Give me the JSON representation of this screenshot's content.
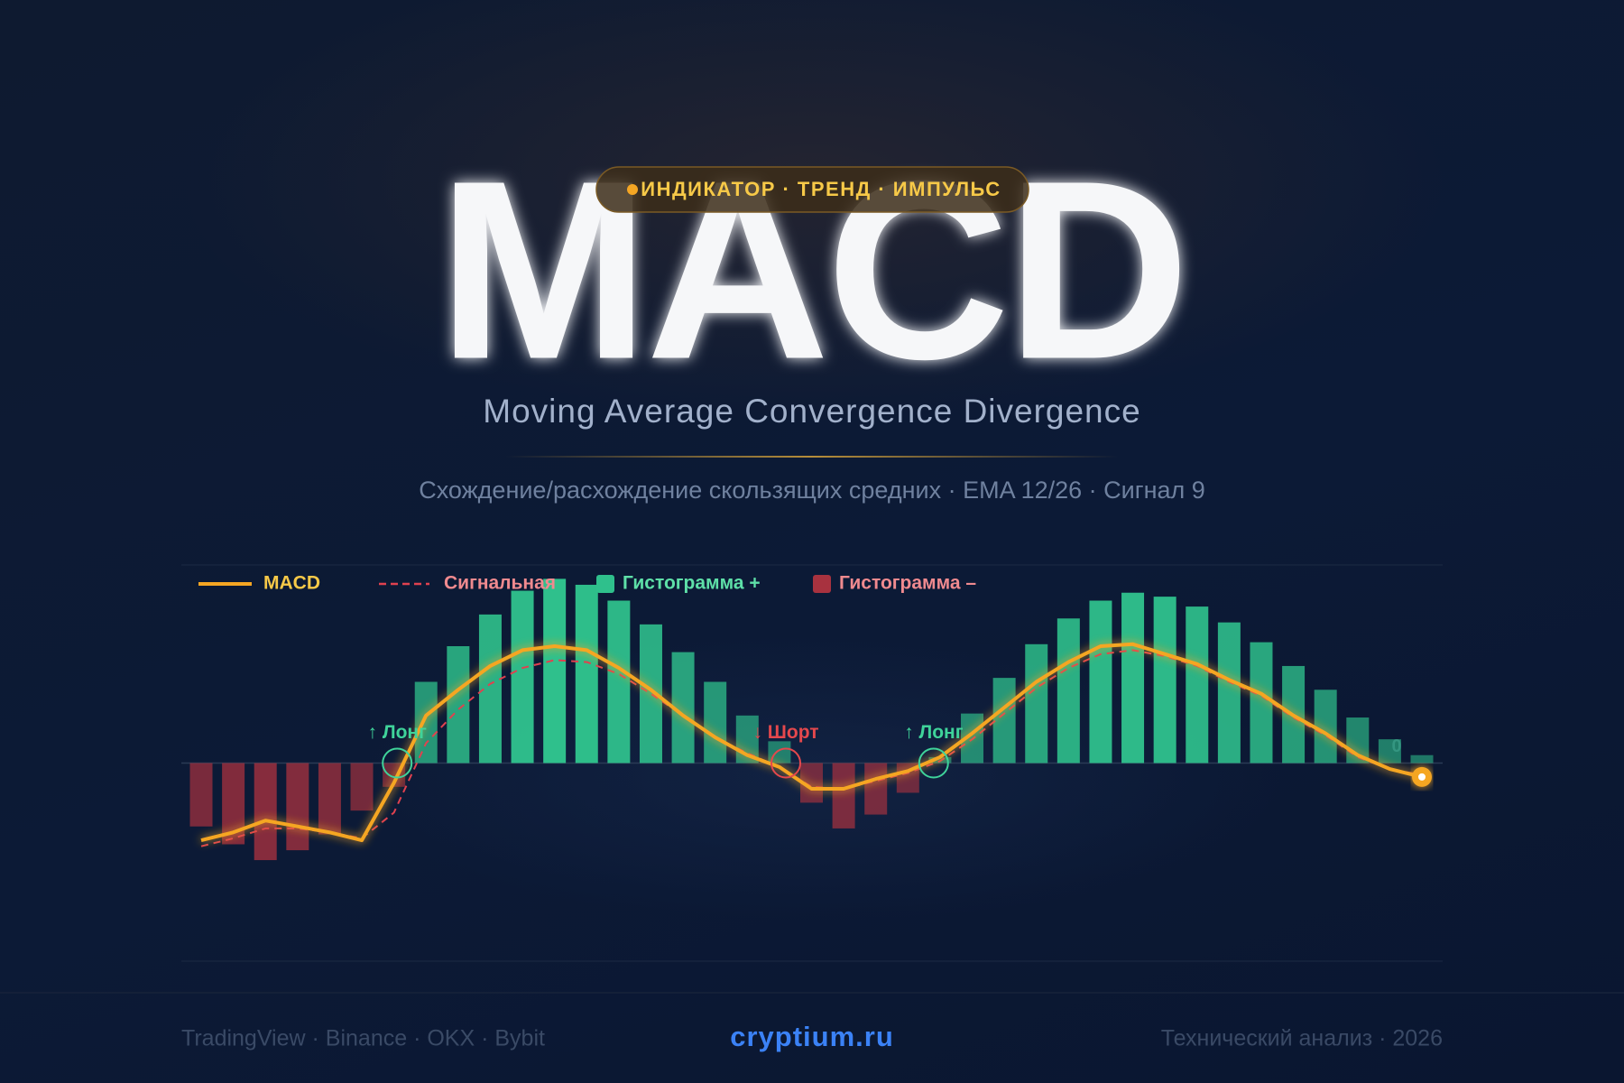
{
  "header": {
    "badge": "ИНДИКАТОР · ТРЕНД · ИМПУЛЬС",
    "title": "MACD",
    "subtitle": "Moving Average Convergence Divergence",
    "description": "Схождение/расхождение скользящих средних · EMA 12/26 · Сигнал 9"
  },
  "chart_data": {
    "type": "macd",
    "categories": [
      null,
      null,
      null,
      null,
      null,
      null,
      null,
      null,
      null,
      null,
      null,
      null,
      null,
      null,
      null,
      null,
      null,
      null,
      null,
      null,
      null,
      null,
      null,
      null,
      null,
      null,
      null,
      null,
      null,
      null,
      null,
      null,
      null,
      null,
      null,
      null,
      null,
      null,
      null
    ],
    "histogram": {
      "values": [
        -3.2,
        -4.1,
        -4.9,
        -4.4,
        -3.6,
        -2.4,
        -1.2,
        4.1,
        5.9,
        7.5,
        8.7,
        9.3,
        9.0,
        8.2,
        7.0,
        5.6,
        4.1,
        2.4,
        1.1,
        -2.0,
        -3.3,
        -2.6,
        -1.5,
        0.3,
        2.5,
        4.3,
        6.0,
        7.3,
        8.2,
        8.6,
        8.4,
        7.9,
        7.1,
        6.1,
        4.9,
        3.7,
        2.3,
        1.2,
        0.4
      ],
      "positive": {
        "name": "Гистограмма +",
        "color": "#2fc08c"
      },
      "negative": {
        "name": "Гистограмма –",
        "color": "#a8323f"
      }
    },
    "series": [
      {
        "name": "MACD",
        "color": "#f5a623",
        "dashed": false,
        "values": [
          -3.9,
          -3.5,
          -2.9,
          -3.2,
          -3.5,
          -3.9,
          -1.0,
          2.4,
          3.7,
          4.9,
          5.7,
          5.9,
          5.7,
          4.8,
          3.7,
          2.4,
          1.3,
          0.4,
          -0.2,
          -1.3,
          -1.3,
          -0.8,
          -0.4,
          0.3,
          1.5,
          2.8,
          4.1,
          5.1,
          5.9,
          6.0,
          5.5,
          5.0,
          4.2,
          3.5,
          2.4,
          1.5,
          0.4,
          -0.3,
          -0.7
        ]
      },
      {
        "name": "Сигнальная",
        "color": "#e0414f",
        "dashed": true,
        "values": [
          -4.2,
          -3.8,
          -3.3,
          -3.3,
          -3.5,
          -3.8,
          -2.5,
          1.0,
          2.7,
          4.0,
          4.8,
          5.2,
          5.1,
          4.5,
          3.5,
          2.4,
          1.3,
          0.5,
          -0.2,
          -1.2,
          -1.3,
          -0.9,
          -0.5,
          0.1,
          1.2,
          2.5,
          3.8,
          4.8,
          5.5,
          5.7,
          5.4,
          4.9,
          4.1,
          3.4,
          2.3,
          1.4,
          0.3,
          -0.3,
          -0.6
        ]
      }
    ],
    "annotations": [
      {
        "text": "↑ Лонг",
        "x": 6.1,
        "y": 0,
        "color": "#3fd39a"
      },
      {
        "text": "↓ Шорт",
        "x": 18.2,
        "y": 0,
        "color": "#e5484d"
      },
      {
        "text": "↑ Лонг",
        "x": 22.8,
        "y": 0,
        "color": "#3fd39a"
      }
    ],
    "ylim": [
      -10,
      10
    ],
    "yticks": [
      0
    ],
    "grid": true
  },
  "footer": {
    "left": "TradingView · Binance · OKX · Bybit",
    "center": "cryptium.ru",
    "right": "Технический анализ · 2026"
  }
}
